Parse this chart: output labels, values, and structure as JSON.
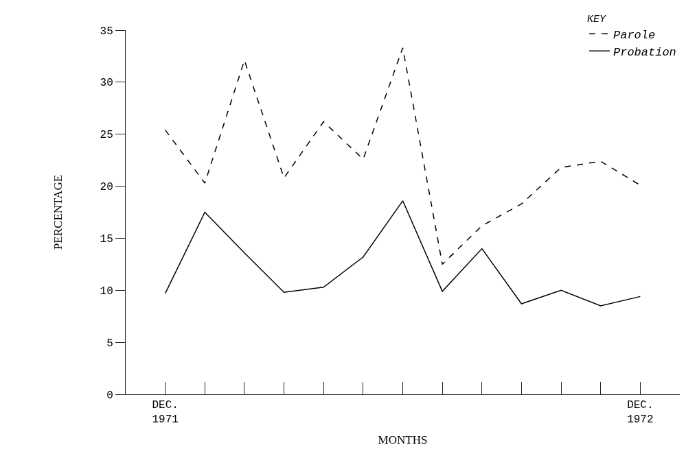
{
  "chart_data": {
    "type": "line",
    "xlabel": "MONTHS",
    "ylabel": "PERCENTAGE",
    "legend_title": "KEY",
    "legend": "top right",
    "marker": "none",
    "categories": [
      "DEC.\n1971",
      null,
      null,
      null,
      null,
      null,
      null,
      null,
      null,
      null,
      null,
      null,
      "DEC.\n1972"
    ],
    "ylim": [
      0,
      35
    ],
    "yticks": [
      0,
      5,
      10,
      15,
      20,
      25,
      30,
      35
    ],
    "series": [
      {
        "name": "Parole",
        "color": "#000000",
        "line_style": "dashed",
        "values": [
          25.4,
          20.3,
          32.1,
          20.8,
          26.2,
          22.6,
          33.3,
          12.5,
          16.2,
          18.3,
          21.8,
          22.4,
          20.1
        ]
      },
      {
        "name": "Probation",
        "color": "#000000",
        "line_style": "solid",
        "values": [
          9.7,
          17.5,
          13.6,
          9.8,
          10.3,
          13.2,
          18.6,
          9.9,
          14.0,
          8.7,
          10.0,
          8.5,
          9.4
        ]
      }
    ]
  }
}
